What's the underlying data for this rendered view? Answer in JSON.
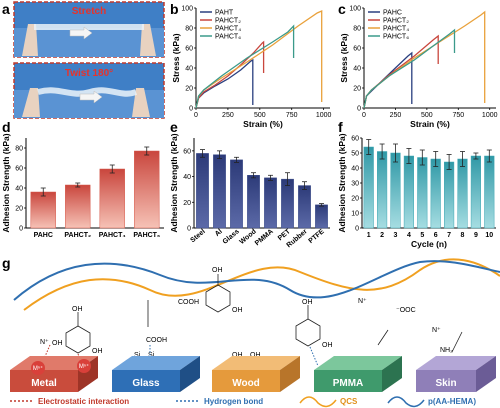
{
  "panel_labels": [
    "a",
    "b",
    "c",
    "d",
    "e",
    "f",
    "g"
  ],
  "photos": {
    "top_label": "Stretch",
    "bottom_label": "Twist 180°"
  },
  "chart_data": [
    {
      "panel": "b",
      "type": "line",
      "xlabel": "Strain (%)",
      "ylabel": "Stress (kPa)",
      "xlim": [
        0,
        1050
      ],
      "ylim": [
        0,
        100
      ],
      "xticks": [
        0,
        250,
        500,
        750,
        1000
      ],
      "yticks": [
        0,
        20,
        40,
        60,
        80,
        100
      ],
      "legend_position": "top-left",
      "series": [
        {
          "name": "PAHT",
          "color": "#2a3f7f",
          "points": [
            [
              0,
              0
            ],
            [
              20,
              10
            ],
            [
              60,
              15
            ],
            [
              150,
              22
            ],
            [
              250,
              29
            ],
            [
              350,
              38
            ],
            [
              430,
              47
            ],
            [
              445,
              48
            ],
            [
              445,
              3
            ]
          ]
        },
        {
          "name": "PAHCT₂",
          "color": "#c9463d",
          "points": [
            [
              0,
              0
            ],
            [
              20,
              10
            ],
            [
              60,
              16
            ],
            [
              150,
              23
            ],
            [
              250,
              32
            ],
            [
              350,
              43
            ],
            [
              450,
              55
            ],
            [
              520,
              65
            ],
            [
              530,
              66
            ],
            [
              530,
              35
            ]
          ]
        },
        {
          "name": "PAHCT₄",
          "color": "#e9a13b",
          "points": [
            [
              0,
              0
            ],
            [
              20,
              12
            ],
            [
              60,
              18
            ],
            [
              200,
              30
            ],
            [
              400,
              46
            ],
            [
              600,
              63
            ],
            [
              800,
              82
            ],
            [
              950,
              95
            ],
            [
              985,
              97
            ],
            [
              985,
              6
            ]
          ]
        },
        {
          "name": "PAHCT₆",
          "color": "#3b9a8a",
          "points": [
            [
              0,
              0
            ],
            [
              20,
              12
            ],
            [
              60,
              18
            ],
            [
              200,
              32
            ],
            [
              400,
              50
            ],
            [
              600,
              66
            ],
            [
              720,
              76
            ],
            [
              765,
              82
            ],
            [
              765,
              50
            ]
          ]
        }
      ]
    },
    {
      "panel": "c",
      "type": "line",
      "xlabel": "Strain (%)",
      "ylabel": "Stress (kPa)",
      "xlim": [
        0,
        1050
      ],
      "ylim": [
        0,
        100
      ],
      "xticks": [
        0,
        250,
        500,
        750,
        1000
      ],
      "yticks": [
        0,
        20,
        40,
        60,
        80,
        100
      ],
      "legend_position": "top-left",
      "series": [
        {
          "name": "PAHC",
          "color": "#2a3f7f",
          "points": [
            [
              0,
              0
            ],
            [
              20,
              12
            ],
            [
              60,
              17
            ],
            [
              150,
              28
            ],
            [
              250,
              40
            ],
            [
              350,
              52
            ],
            [
              380,
              55
            ],
            [
              380,
              4
            ]
          ]
        },
        {
          "name": "PAHCT₂",
          "color": "#c9463d",
          "points": [
            [
              0,
              0
            ],
            [
              20,
              12
            ],
            [
              60,
              18
            ],
            [
              200,
              33
            ],
            [
              400,
              52
            ],
            [
              550,
              68
            ],
            [
              590,
              72
            ],
            [
              590,
              44
            ]
          ]
        },
        {
          "name": "PAHCT₄",
          "color": "#e9a13b",
          "points": [
            [
              0,
              0
            ],
            [
              20,
              12
            ],
            [
              60,
              18
            ],
            [
              200,
              32
            ],
            [
              400,
              50
            ],
            [
              600,
              66
            ],
            [
              800,
              82
            ],
            [
              930,
              93
            ],
            [
              960,
              96
            ],
            [
              960,
              5
            ]
          ]
        },
        {
          "name": "PAHCT₆",
          "color": "#3b9a8a",
          "points": [
            [
              0,
              0
            ],
            [
              20,
              12
            ],
            [
              60,
              18
            ],
            [
              200,
              32
            ],
            [
              400,
              48
            ],
            [
              550,
              62
            ],
            [
              680,
              74
            ],
            [
              720,
              78
            ],
            [
              720,
              55
            ]
          ]
        }
      ]
    },
    {
      "panel": "d",
      "type": "bar",
      "ylabel": "Adhesion Strength (kPa)",
      "ylim": [
        0,
        90
      ],
      "yticks": [
        0,
        20,
        40,
        60,
        80
      ],
      "categories": [
        "PAHC",
        "PAHCT₂",
        "PAHCT₄",
        "PAHCT₆"
      ],
      "values": [
        36,
        43,
        59,
        77
      ],
      "errors": [
        4,
        2,
        4,
        4
      ]
    },
    {
      "panel": "e",
      "type": "bar",
      "ylabel": "Adhesion Strength (kPa)",
      "ylim": [
        0,
        70
      ],
      "yticks": [
        0,
        20,
        40,
        60
      ],
      "categories": [
        "Steel",
        "Al",
        "Glass",
        "Wood",
        "PMMA",
        "PET",
        "Rubber",
        "PTFE"
      ],
      "values": [
        58,
        57,
        53,
        41,
        39,
        38,
        33,
        18
      ],
      "errors": [
        3,
        3,
        2,
        2,
        2,
        5,
        3,
        1
      ]
    },
    {
      "panel": "f",
      "type": "bar",
      "ylabel": "Adhesion Strength (kPa)",
      "xlabel": "Cycle (n)",
      "ylim": [
        0,
        60
      ],
      "yticks": [
        0,
        10,
        20,
        30,
        40,
        50,
        60
      ],
      "categories": [
        "1",
        "2",
        "3",
        "4",
        "5",
        "6",
        "7",
        "8",
        "9",
        "10"
      ],
      "values": [
        54,
        51,
        50,
        48,
        47,
        46,
        44,
        46,
        48,
        48
      ],
      "errors": [
        5,
        5,
        6,
        5,
        5,
        5,
        5,
        5,
        2,
        4
      ]
    }
  ],
  "schematic": {
    "substrates": [
      "Metal",
      "Glass",
      "Wood",
      "PMMA",
      "Skin"
    ],
    "ions": [
      "Mⁿ⁺",
      "Mⁿ⁺"
    ],
    "labels": {
      "cooh": "COOH",
      "ooc": "⁻OOC",
      "oh": "OH",
      "nh2": "NH₂",
      "n_plus": "N⁺",
      "si": "Si"
    },
    "legend": {
      "electrostatic": "Electrostatic interaction",
      "hydrogen": "Hydrogen bond",
      "qcs": "QCS",
      "polymer": "p(AA-HEMA)"
    },
    "colors": {
      "metal": "#c94c3c",
      "glass": "#2e6fb6",
      "wood": "#e59a3c",
      "pmma": "#3f9a6c",
      "skin": "#8f7fb8",
      "qcs": "#f0a020",
      "polymer": "#2f6fb0",
      "electro": "#c0392b"
    }
  }
}
